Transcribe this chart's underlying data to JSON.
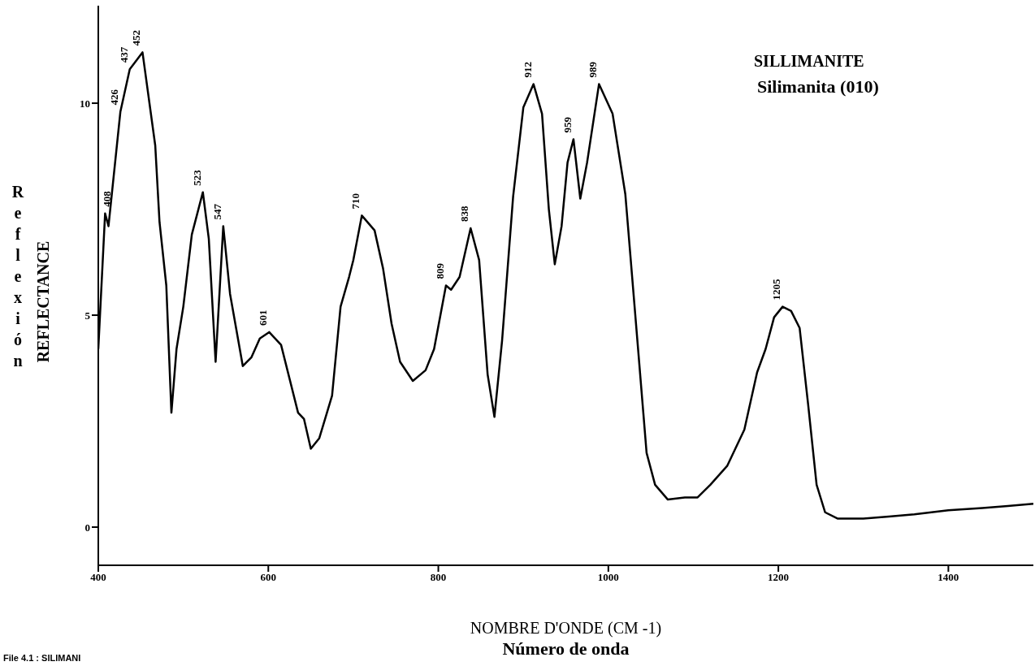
{
  "chart_data": {
    "type": "line",
    "title": "SILLIMANITE",
    "subtitle": "Silimanita (010)",
    "xlabel": "NOMBRE D'ONDE (CM -1)\nNúmero de onda",
    "ylabel": "Reflexión\nREFLECTANCE",
    "xlim": [
      400,
      1500
    ],
    "xticks": [
      400,
      600,
      800,
      1000,
      1200,
      1400
    ],
    "ylim": [
      -0.9,
      12.3
    ],
    "yticks": [
      0,
      5,
      10
    ],
    "series": [
      {
        "color": "#000000",
        "x": [
          400,
          408,
          412,
          426,
          437,
          452,
          467,
          472,
          480,
          486,
          492,
          500,
          510,
          523,
          530,
          538,
          547,
          555,
          570,
          580,
          590,
          601,
          615,
          625,
          635,
          642,
          650,
          660,
          675,
          685,
          695,
          700,
          710,
          725,
          735,
          745,
          755,
          770,
          785,
          795,
          809,
          815,
          825,
          838,
          848,
          858,
          866,
          875,
          888,
          900,
          912,
          922,
          930,
          937,
          945,
          952,
          959,
          967,
          975,
          989,
          1005,
          1020,
          1035,
          1045,
          1055,
          1070,
          1090,
          1105,
          1120,
          1140,
          1160,
          1175,
          1185,
          1195,
          1205,
          1215,
          1225,
          1235,
          1245,
          1255,
          1270,
          1300,
          1330,
          1360,
          1400,
          1440,
          1470,
          1500
        ],
        "values": [
          4.2,
          7.4,
          7.1,
          9.8,
          10.8,
          11.2,
          9.0,
          7.2,
          5.7,
          2.7,
          4.2,
          5.2,
          6.9,
          7.9,
          6.8,
          3.9,
          7.1,
          5.5,
          3.8,
          4.0,
          4.45,
          4.6,
          4.3,
          3.5,
          2.7,
          2.55,
          1.85,
          2.1,
          3.1,
          5.2,
          5.9,
          6.3,
          7.35,
          7.0,
          6.1,
          4.8,
          3.9,
          3.45,
          3.7,
          4.2,
          5.7,
          5.6,
          5.9,
          7.05,
          6.3,
          3.6,
          2.6,
          4.4,
          7.8,
          9.9,
          10.45,
          9.75,
          7.5,
          6.2,
          7.1,
          8.6,
          9.15,
          7.75,
          8.6,
          10.45,
          9.75,
          7.85,
          4.2,
          1.75,
          1.0,
          0.65,
          0.7,
          0.7,
          1.0,
          1.45,
          2.3,
          3.65,
          4.2,
          4.95,
          5.2,
          5.1,
          4.7,
          2.9,
          1.0,
          0.35,
          0.2,
          0.2,
          0.25,
          0.3,
          0.4,
          0.45,
          0.5,
          0.55
        ]
      }
    ],
    "annotations": [
      {
        "text": "408",
        "x": 408,
        "y": 7.4
      },
      {
        "text": "426",
        "x": 426,
        "y": 9.8
      },
      {
        "text": "437",
        "x": 437,
        "y": 10.8
      },
      {
        "text": "452",
        "x": 452,
        "y": 11.2
      },
      {
        "text": "523",
        "x": 523,
        "y": 7.9
      },
      {
        "text": "547",
        "x": 547,
        "y": 7.1
      },
      {
        "text": "601",
        "x": 601,
        "y": 4.6
      },
      {
        "text": "710",
        "x": 710,
        "y": 7.35
      },
      {
        "text": "809",
        "x": 809,
        "y": 5.7
      },
      {
        "text": "838",
        "x": 838,
        "y": 7.05
      },
      {
        "text": "912",
        "x": 912,
        "y": 10.45
      },
      {
        "text": "959",
        "x": 959,
        "y": 9.15
      },
      {
        "text": "989",
        "x": 989,
        "y": 10.45
      },
      {
        "text": "1205",
        "x": 1205,
        "y": 5.2
      },
      "File 4.1 : SILIMANI"
    ]
  }
}
